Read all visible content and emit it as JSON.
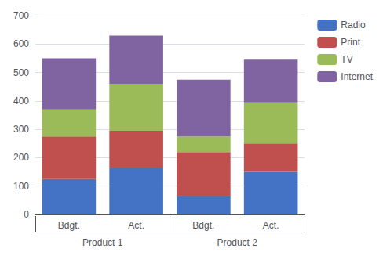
{
  "chart_data": {
    "type": "bar",
    "stacked": true,
    "categories": [
      "Bdgt.",
      "Act.",
      "Bdgt.",
      "Act."
    ],
    "groups": [
      {
        "name": "Product 1",
        "categories": [
          "Bdgt.",
          "Act."
        ]
      },
      {
        "name": "Product 2",
        "categories": [
          "Bdgt.",
          "Act."
        ]
      }
    ],
    "series": [
      {
        "name": "Radio",
        "color": "#4472C4",
        "values": [
          125,
          165,
          65,
          150
        ]
      },
      {
        "name": "Print",
        "color": "#C0504D",
        "values": [
          150,
          130,
          155,
          100
        ]
      },
      {
        "name": "TV",
        "color": "#9BBB59",
        "values": [
          95,
          165,
          55,
          145
        ]
      },
      {
        "name": "Internet",
        "color": "#8064A2",
        "values": [
          180,
          170,
          200,
          150
        ]
      }
    ],
    "ylim": [
      0,
      700
    ],
    "yticks": [
      0,
      100,
      200,
      300,
      400,
      500,
      600,
      700
    ],
    "grid": true,
    "legend": "right"
  }
}
